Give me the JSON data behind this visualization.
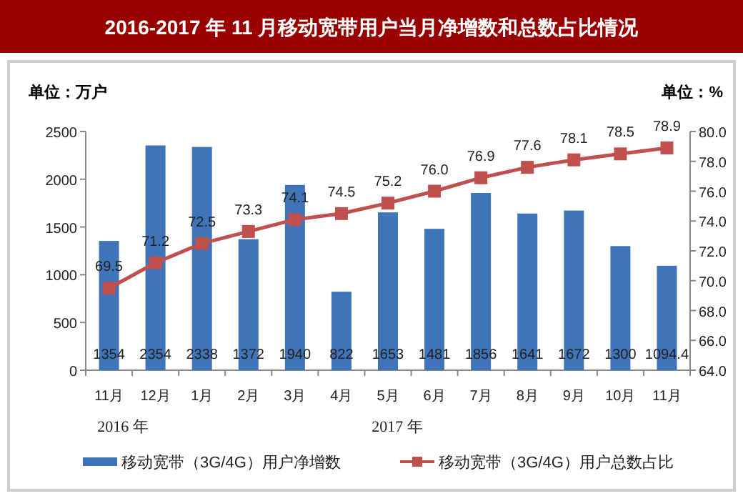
{
  "chart_data": {
    "type": "bar",
    "title": "2016-2017 年 11 月移动宽带用户当月净增数和总数占比情况",
    "ylabel": "单位：万户",
    "y2label": "单位：%",
    "categories": [
      "11月",
      "12月",
      "1月",
      "2月",
      "3月",
      "4月",
      "5月",
      "6月",
      "7月",
      "8月",
      "9月",
      "10月",
      "11月"
    ],
    "series": [
      {
        "name": "移动宽带（3G/4G）用户净增数",
        "color": "#3f74b9",
        "values": [
          1354,
          2354,
          2338,
          1372,
          1940,
          822,
          1653,
          1481,
          1856,
          1641,
          1672,
          1300,
          1094.4
        ],
        "value_labels": [
          "1354",
          "2354",
          "2338",
          "1372",
          "1940",
          "822",
          "1653",
          "1481",
          "1856",
          "1641",
          "1672",
          "1300",
          "1094.4"
        ]
      },
      {
        "name": "移动宽带（3G/4G）用户总数占比",
        "type": "line",
        "axis": "y2",
        "color": "#c0504d",
        "marker": "square",
        "values": [
          69.5,
          71.2,
          72.5,
          73.3,
          74.1,
          74.5,
          75.2,
          76.0,
          76.9,
          77.6,
          78.1,
          78.5,
          78.9
        ],
        "value_labels": [
          "69.5",
          "71.2",
          "72.5",
          "73.3",
          "74.1",
          "74.5",
          "75.2",
          "76.0",
          "76.9",
          "77.6",
          "78.1",
          "78.5",
          "78.9"
        ]
      }
    ],
    "ylim": [
      0,
      2500
    ],
    "yticks": [
      0,
      500,
      1000,
      1500,
      2000,
      2500
    ],
    "y2lim": [
      64,
      80
    ],
    "y2ticks": [
      {
        "value": 64,
        "label": "64.0"
      },
      {
        "value": 66,
        "label": "66.0"
      },
      {
        "value": 68,
        "label": "68.0"
      },
      {
        "value": 70,
        "label": "70.0"
      },
      {
        "value": 72,
        "label": "72.0"
      },
      {
        "value": 74,
        "label": "74.0"
      },
      {
        "value": 76,
        "label": "76.0"
      },
      {
        "value": 78,
        "label": "78.0"
      },
      {
        "value": 80,
        "label": "80.0"
      }
    ],
    "legend": "bottom",
    "annotations": [
      "2016 年",
      "2017 年"
    ]
  }
}
